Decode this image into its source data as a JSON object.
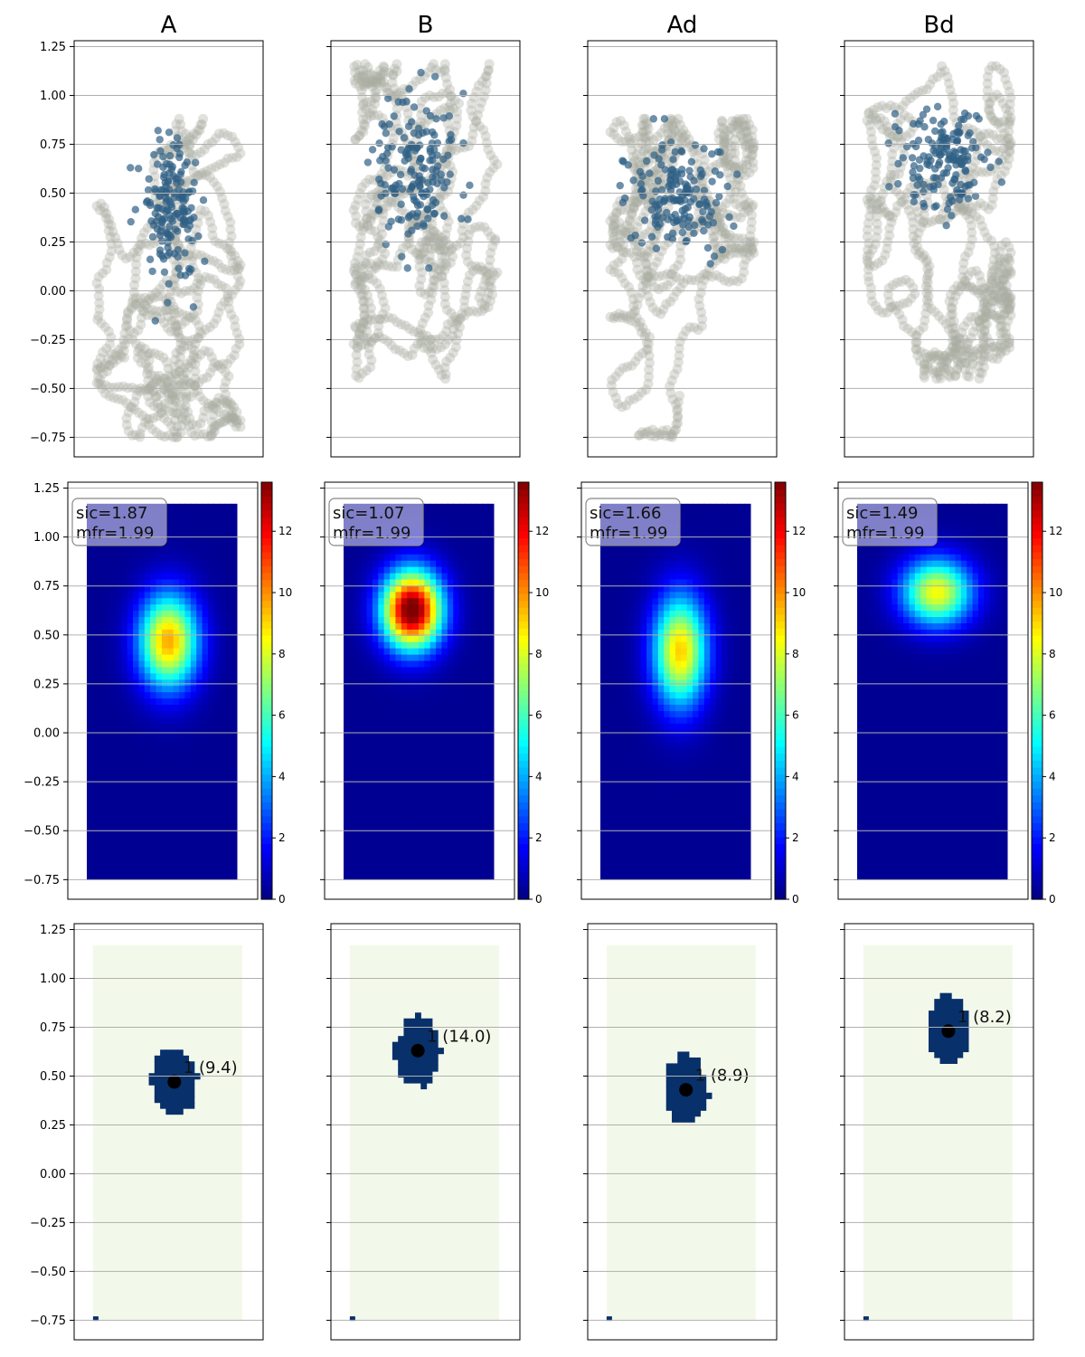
{
  "chart_data": {
    "type": "scatter",
    "description_layout": "grid of 3 rows x 4 columns",
    "columns": [
      "A",
      "B",
      "Ad",
      "Bd"
    ],
    "y_ticks": [
      "1.25",
      "1.00",
      "0.75",
      "0.50",
      "0.25",
      "0.00",
      "−0.25",
      "−0.50",
      "−0.75"
    ],
    "y_tick_values": [
      1.25,
      1.0,
      0.75,
      0.5,
      0.25,
      0.0,
      -0.25,
      -0.5,
      -0.75
    ],
    "ylim": [
      -0.85,
      1.28
    ],
    "grid": "horizontal",
    "colors": {
      "trajectory": "#a9ada0",
      "spikes": "#2f5f85",
      "field": "#08306b",
      "background_field": "#f3f9ea",
      "colormap": "jet"
    },
    "colorbar_ticks": [
      "0",
      "2",
      "4",
      "6",
      "8",
      "10",
      "12"
    ],
    "colorbar_range": [
      0,
      13.6
    ],
    "panels": [
      {
        "name": "A",
        "trajectory": {
          "x": [
            0.12,
            0.88
          ],
          "y": [
            -0.75,
            0.88
          ]
        },
        "spike_center": [
          0.52,
          0.42
        ],
        "spike_spread": [
          0.08,
          0.17
        ],
        "rate_map": {
          "peak": 9.4,
          "center": [
            0.53,
            0.47
          ],
          "spread": [
            0.11,
            0.17
          ]
        },
        "stats": {
          "sic": "sic=1.87",
          "mfr": "mfr=1.99"
        },
        "field": {
          "label": "1 (9.4)",
          "center": [
            0.53,
            0.47
          ]
        }
      },
      {
        "name": "B",
        "trajectory": {
          "x": [
            0.12,
            0.88
          ],
          "y": [
            -0.45,
            1.16
          ]
        },
        "spike_center": [
          0.45,
          0.62
        ],
        "spike_spread": [
          0.1,
          0.19
        ],
        "rate_map": {
          "peak": 14.0,
          "center": [
            0.46,
            0.63
          ],
          "spread": [
            0.11,
            0.14
          ]
        },
        "stats": {
          "sic": "sic=1.07",
          "mfr": "mfr=1.99"
        },
        "field": {
          "label": "1 (14.0)",
          "center": [
            0.46,
            0.63
          ]
        }
      },
      {
        "name": "Ad",
        "trajectory": {
          "x": [
            0.12,
            0.88
          ],
          "y": [
            -0.75,
            0.88
          ]
        },
        "spike_center": [
          0.48,
          0.5
        ],
        "spike_spread": [
          0.13,
          0.14
        ],
        "rate_map": {
          "peak": 8.9,
          "center": [
            0.52,
            0.42
          ],
          "spread": [
            0.1,
            0.2
          ]
        },
        "stats": {
          "sic": "sic=1.66",
          "mfr": "mfr=1.99"
        },
        "field": {
          "label": "1 (8.9)",
          "center": [
            0.52,
            0.43
          ]
        }
      },
      {
        "name": "Bd",
        "trajectory": {
          "x": [
            0.12,
            0.88
          ],
          "y": [
            -0.45,
            1.15
          ]
        },
        "spike_center": [
          0.54,
          0.65
        ],
        "spike_spread": [
          0.12,
          0.13
        ],
        "rate_map": {
          "peak": 8.2,
          "center": [
            0.52,
            0.72
          ],
          "spread": [
            0.13,
            0.12
          ]
        },
        "stats": {
          "sic": "sic=1.49",
          "mfr": "mfr=1.99"
        },
        "field": {
          "label": "1 (8.2)",
          "center": [
            0.55,
            0.73
          ]
        }
      }
    ]
  }
}
